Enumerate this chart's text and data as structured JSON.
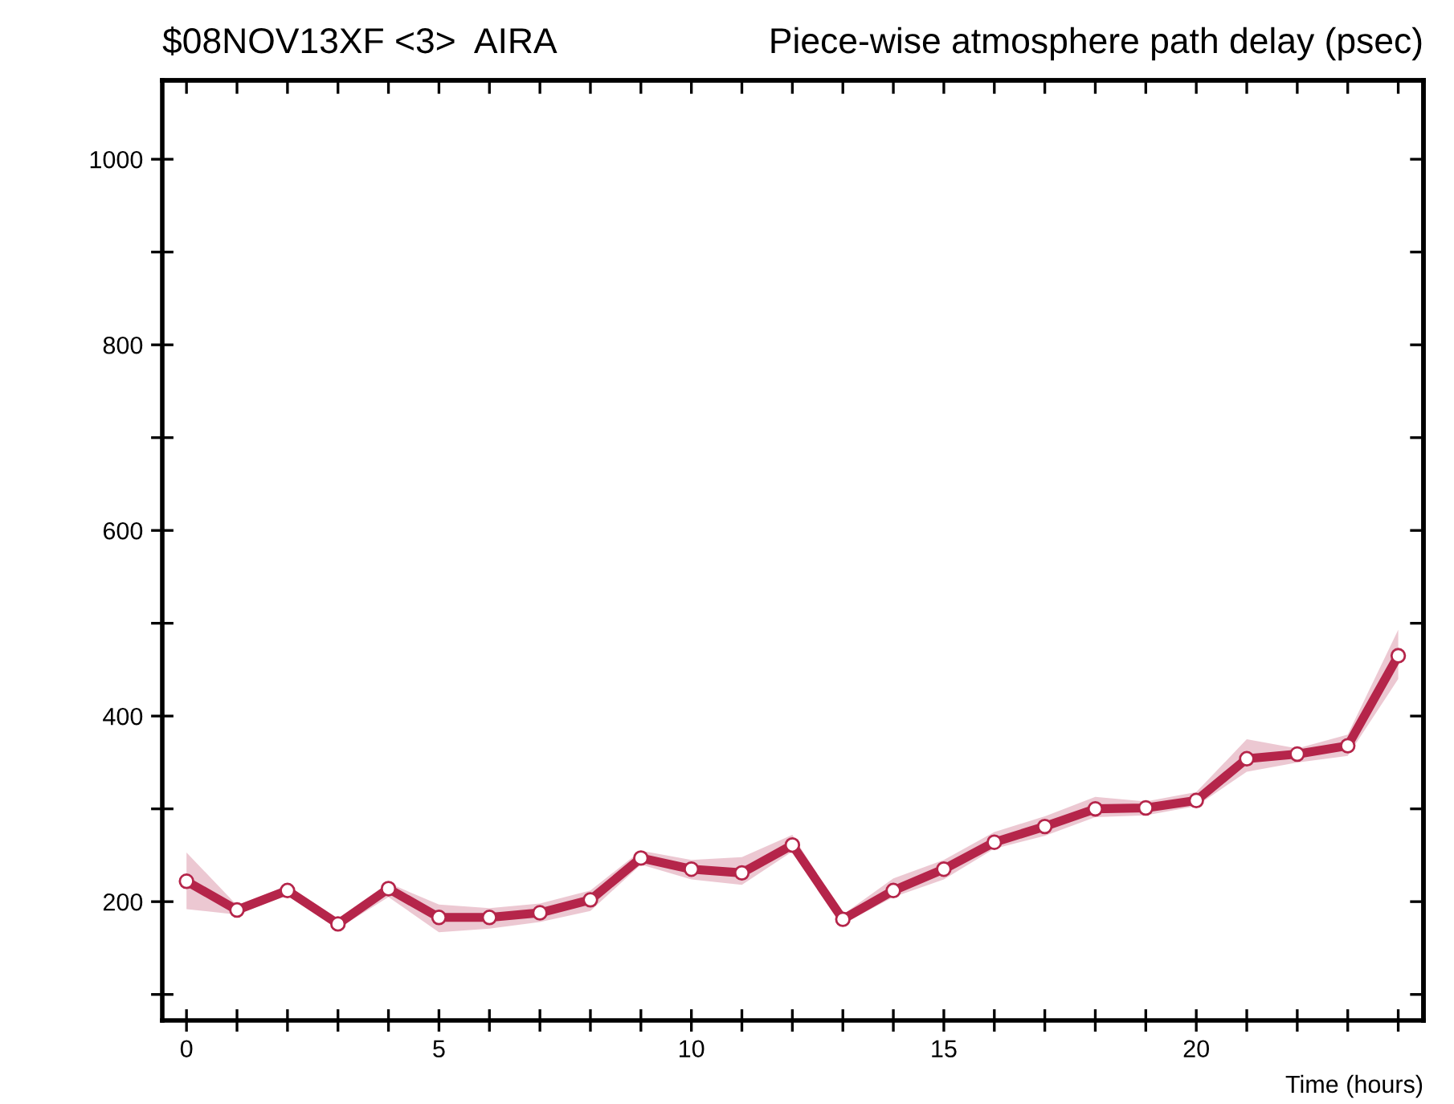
{
  "chart_data": {
    "type": "line",
    "title": "$08NOV13XF <3>  AIRA",
    "subtitle": "Piece-wise atmosphere path delay (psec)",
    "xlabel": "Time (hours)",
    "x": [
      0,
      1,
      2,
      3,
      4,
      5,
      6,
      7,
      8,
      9,
      10,
      11,
      12,
      13,
      14,
      15,
      16,
      17,
      18,
      19,
      20,
      21,
      22,
      23,
      24
    ],
    "series": [
      {
        "color": "#b5254a",
        "values": [
          222,
          191,
          212,
          176,
          214,
          183,
          183,
          188,
          202,
          247,
          235,
          231,
          261,
          181,
          212,
          235,
          264,
          281,
          300,
          301,
          309,
          354,
          359,
          368,
          465
        ],
        "lower": [
          192,
          186,
          207,
          171,
          205,
          167,
          171,
          178,
          190,
          240,
          224,
          218,
          254,
          176,
          205,
          224,
          257,
          271,
          291,
          293,
          303,
          340,
          350,
          357,
          440
        ],
        "upper": [
          253,
          196,
          217,
          182,
          220,
          197,
          193,
          198,
          212,
          255,
          245,
          248,
          272,
          186,
          225,
          245,
          275,
          292,
          313,
          308,
          318,
          375,
          365,
          380,
          493
        ]
      }
    ],
    "xlim": [
      -0.48,
      24.5
    ],
    "ylim": [
      72,
      1085
    ],
    "xticks": [
      0,
      {
        "value": 1,
        "label": null
      },
      {
        "value": 2,
        "label": null
      },
      {
        "value": 3,
        "label": null
      },
      {
        "value": 4,
        "label": null
      },
      5,
      {
        "value": 6,
        "label": null
      },
      {
        "value": 7,
        "label": null
      },
      {
        "value": 8,
        "label": null
      },
      {
        "value": 9,
        "label": null
      },
      10,
      {
        "value": 11,
        "label": null
      },
      {
        "value": 12,
        "label": null
      },
      {
        "value": 13,
        "label": null
      },
      {
        "value": 14,
        "label": null
      },
      15,
      {
        "value": 16,
        "label": null
      },
      {
        "value": 17,
        "label": null
      },
      {
        "value": 18,
        "label": null
      },
      {
        "value": 19,
        "label": null
      },
      20,
      {
        "value": 21,
        "label": null
      },
      {
        "value": 22,
        "label": null
      },
      {
        "value": 23,
        "label": null
      },
      {
        "value": 24,
        "label": null
      }
    ],
    "yticks": [
      {
        "value": 100,
        "label": null
      },
      200,
      {
        "value": 300,
        "label": null
      },
      400,
      {
        "value": 500,
        "label": null
      },
      600,
      {
        "value": 700,
        "label": null
      },
      800,
      {
        "value": 900,
        "label": null
      },
      1000
    ],
    "marker": "circle",
    "line_style": "solid",
    "grid": false,
    "legend": false
  }
}
